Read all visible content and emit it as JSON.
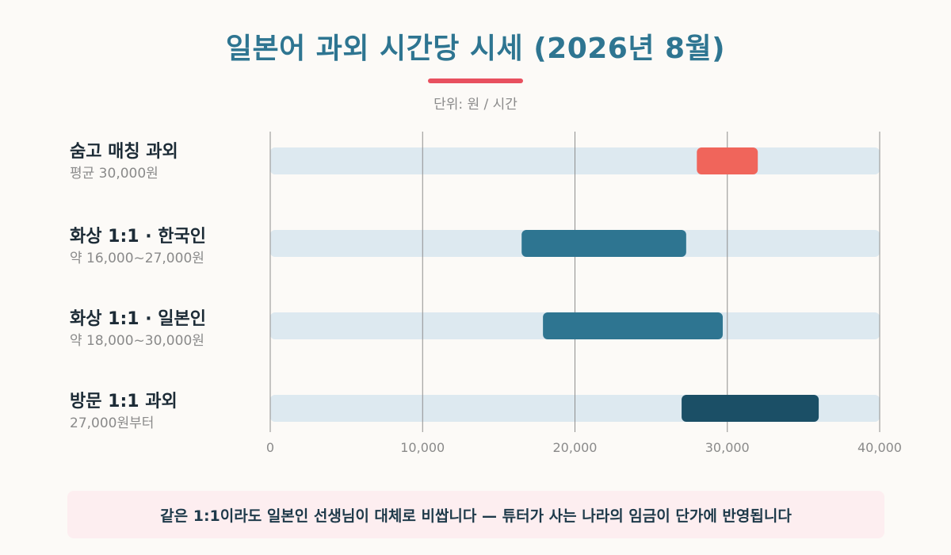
{
  "header": {
    "title": "일본어 과외 시간당 시세 (2026년 8월)",
    "subtitle": "단위: 원 / 시간"
  },
  "colors": {
    "title": "#2e7591",
    "accent": "#e8505f",
    "track": "#dde9f0",
    "soomgo": "#f0655b",
    "online": "#2e7591",
    "visit": "#1b4f66"
  },
  "chart_data": {
    "type": "bar",
    "orientation": "horizontal-range",
    "title": "일본어 과외 시간당 시세 (2026년 8월)",
    "subtitle": "단위: 원 / 시간",
    "xlim": [
      0,
      40000
    ],
    "xticks": [
      0,
      10000,
      20000,
      30000,
      40000
    ],
    "xtick_labels": [
      "0",
      "10,000",
      "20,000",
      "30,000",
      "40,000"
    ],
    "grid": true,
    "series": [
      {
        "name": "숨고 매칭 과외",
        "detail": "평균 30,000원",
        "start": 28000,
        "end": 32000,
        "color": "#f0655b"
      },
      {
        "name": "화상 1:1 · 한국인",
        "detail": "약 16,000~27,000원",
        "start": 16500,
        "end": 27300,
        "color": "#2e7591"
      },
      {
        "name": "화상 1:1 · 일본인",
        "detail": "약 18,000~30,000원",
        "start": 17900,
        "end": 29700,
        "color": "#2e7591"
      },
      {
        "name": "방문 1:1 과외",
        "detail": "27,000원부터",
        "start": 27000,
        "end": 36000,
        "color": "#1b4f66"
      }
    ]
  },
  "note": {
    "text": "같은 1:1이라도 일본인 선생님이 대체로 비쌉니다 — 튜터가 사는 나라의 임금이 단가에 반영됩니다"
  }
}
